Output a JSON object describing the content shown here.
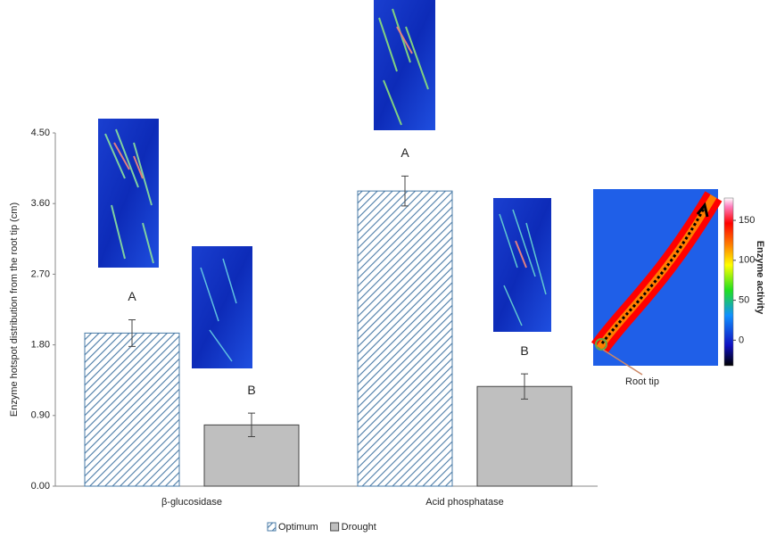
{
  "chart_data": {
    "type": "bar",
    "ylabel": "Enzyme hotspot distribution from the root tip (cm)",
    "categories": [
      "β-glucosidase",
      "Acid phosphatase"
    ],
    "series": [
      {
        "name": "Optimum",
        "color": "#4a7ba7",
        "hatch": true,
        "values": [
          1.95,
          3.76
        ],
        "errors": [
          0.17,
          0.19
        ],
        "letters": [
          "A",
          "A"
        ]
      },
      {
        "name": "Drought",
        "color": "#bfbfbf",
        "hatch": false,
        "values": [
          0.78,
          1.27
        ],
        "errors": [
          0.15,
          0.16
        ],
        "letters": [
          "B",
          "B"
        ]
      }
    ],
    "ylim": [
      0,
      4.5
    ],
    "yticks": [
      {
        "value": 0,
        "label": "0.00"
      },
      {
        "value": 0.9,
        "label": "0.90"
      },
      {
        "value": 1.8,
        "label": "1.80"
      },
      {
        "value": 2.7,
        "label": "2.70"
      },
      {
        "value": 3.6,
        "label": "3.60"
      },
      {
        "value": 4.5,
        "label": "4.50"
      }
    ],
    "legend": "bottom",
    "inset": {
      "label": "Root tip",
      "colorbar_label": "Enzyme activity",
      "colorbar_lim": [
        -32,
        178
      ],
      "colorbar_ticks": [
        0,
        50,
        100,
        150
      ]
    }
  }
}
